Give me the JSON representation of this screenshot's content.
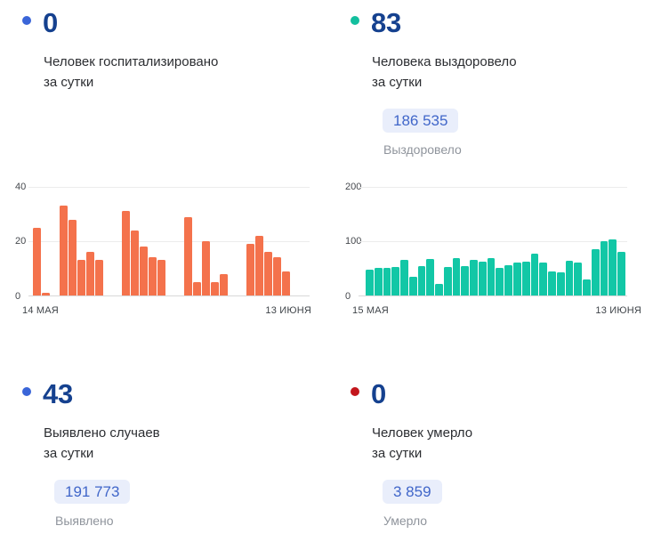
{
  "colors": {
    "number_text": "#15418f",
    "body_text": "#2b2d31",
    "muted_text": "#8f949c",
    "chip_background": "#e9eefb",
    "chip_text": "#4066c9",
    "hospitalized_accent": "#f4724c",
    "recovered_accent": "#12c7a6",
    "detected_accent": "#3a65d8",
    "died_accent": "#c3161c"
  },
  "cards": {
    "hospitalized": {
      "dot_color": "#3a65d8",
      "value": "0",
      "line1": "Человек госпитализировано",
      "line2": "за сутки"
    },
    "recovered": {
      "dot_color": "#12bf9e",
      "value": "83",
      "line1": "Человека выздоровело",
      "line2": "за сутки",
      "total": "186 535",
      "total_label": "Выздоровело"
    },
    "detected": {
      "dot_color": "#3a65d8",
      "value": "43",
      "line1": "Выявлено случаев",
      "line2": "за сутки",
      "total": "191 773",
      "total_label": "Выявлено"
    },
    "died": {
      "dot_color": "#c3161c",
      "value": "0",
      "line1": "Человек умерло",
      "line2": "за сутки",
      "total": "3 859",
      "total_label": "Умерло"
    }
  },
  "chart_data": [
    {
      "type": "bar",
      "name": "hospitalized_per_day",
      "color": "#f4724c",
      "x_start_label": "14 МАЯ",
      "x_end_label": "13 ИЮНЯ",
      "ylim": [
        0,
        40
      ],
      "yticks": [
        0,
        20,
        40
      ],
      "grid": true,
      "legend": "none",
      "values": [
        25,
        1,
        0,
        33,
        28,
        13,
        16,
        13,
        0,
        0,
        31,
        24,
        18,
        14,
        13,
        0,
        0,
        29,
        5,
        20,
        5,
        8,
        0,
        0,
        19,
        22,
        16,
        14,
        9,
        0,
        0
      ]
    },
    {
      "type": "bar",
      "name": "recovered_per_day",
      "color": "#12c7a6",
      "x_start_label": "15 МАЯ",
      "x_end_label": "13 ИЮНЯ",
      "ylim": [
        0,
        200
      ],
      "yticks": [
        0,
        100,
        200
      ],
      "grid": true,
      "legend": "none",
      "values": [
        48,
        50,
        50,
        52,
        65,
        34,
        54,
        67,
        21,
        52,
        69,
        54,
        66,
        63,
        69,
        50,
        55,
        60,
        62,
        77,
        60,
        45,
        43,
        64,
        60,
        29,
        85,
        100,
        103,
        81
      ]
    }
  ]
}
